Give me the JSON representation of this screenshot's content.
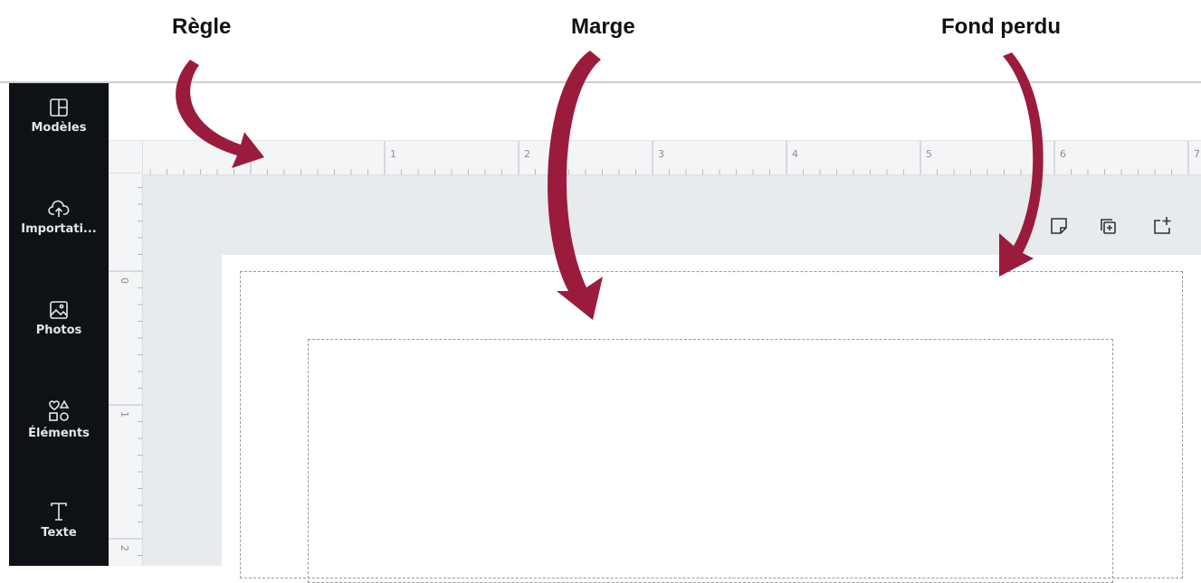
{
  "annotations": {
    "ruler": "Règle",
    "margin": "Marge",
    "bleed": "Fond perdu"
  },
  "sidebar": {
    "items": [
      "Modèles",
      "Importati...",
      "Photos",
      "Éléments",
      "Texte"
    ]
  },
  "ruler": {
    "horizontal": [
      "1",
      "2",
      "3",
      "4",
      "5",
      "6",
      "7"
    ],
    "vertical": [
      "0",
      "1",
      "2"
    ]
  }
}
